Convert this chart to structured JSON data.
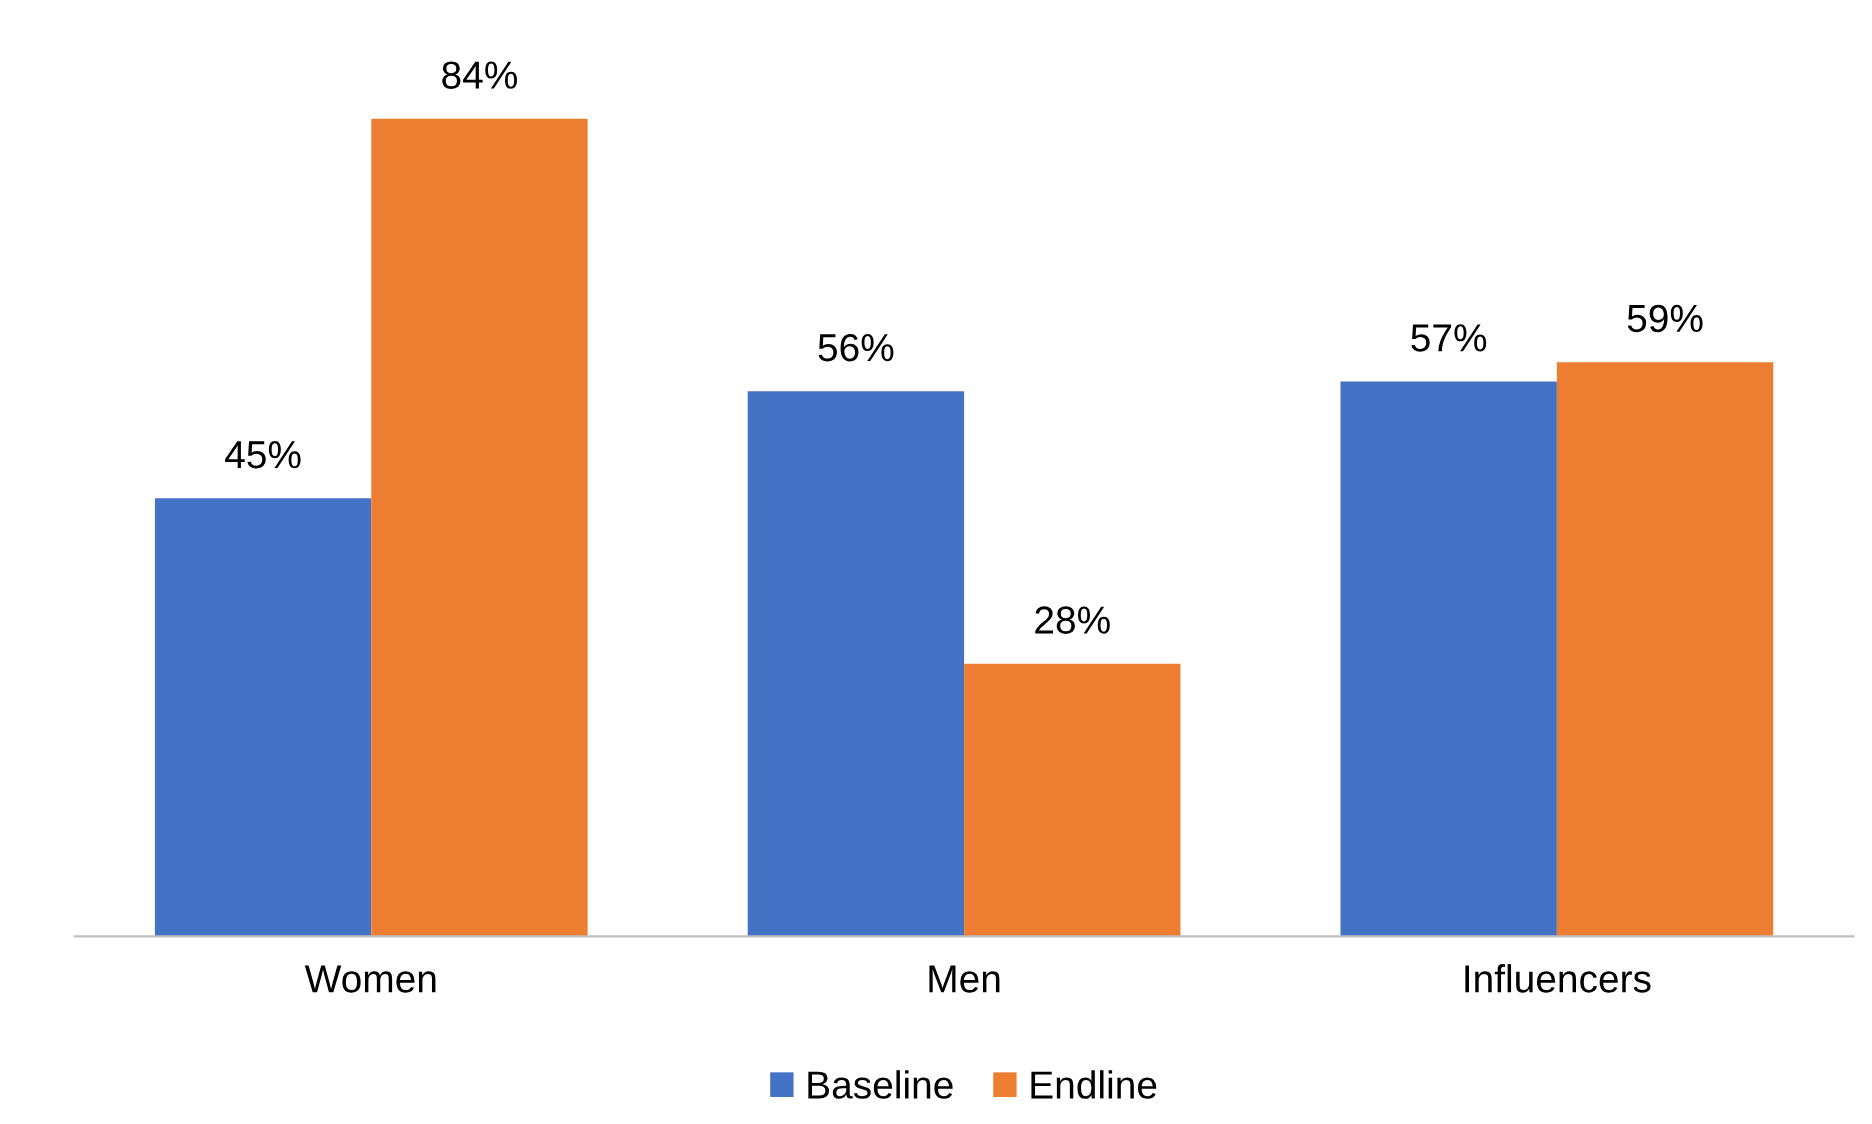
{
  "chart_data": {
    "type": "bar",
    "categories": [
      "Women",
      "Men",
      "Influencers"
    ],
    "series": [
      {
        "name": "Baseline",
        "color": "#4472c4",
        "values": [
          45,
          56,
          57
        ],
        "value_labels": [
          "45%",
          "56%",
          "57%"
        ]
      },
      {
        "name": "Endline",
        "color": "#ed7d31",
        "values": [
          84,
          28,
          59
        ],
        "value_labels": [
          "84%",
          "28%",
          "59%"
        ]
      }
    ],
    "legend": "bottom"
  }
}
